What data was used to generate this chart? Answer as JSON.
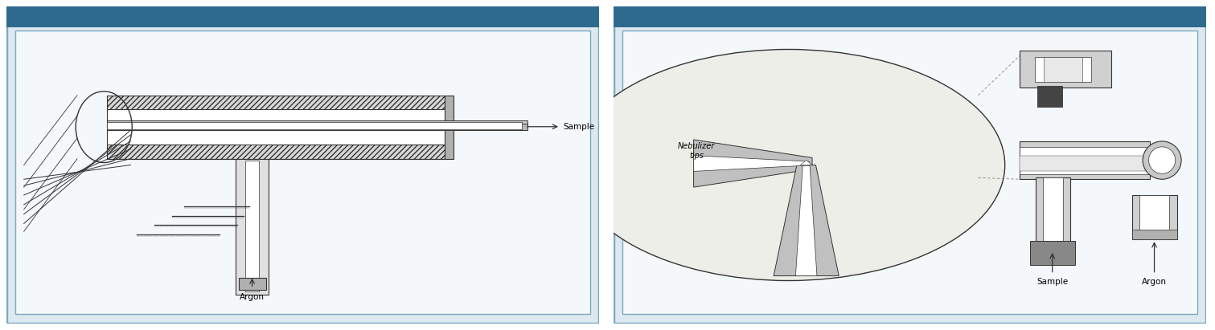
{
  "fig_width": 15.11,
  "fig_height": 4.11,
  "dpi": 100,
  "bg_color": "#ffffff",
  "panel_bg": "#dde8f0",
  "header_color": "#2e6a8e",
  "border_color": "#7aaabb",
  "inner_bg": "#f5f8fa",
  "label_sample1": "Sample",
  "label_argon1": "Argon",
  "label_sample2": "Sample",
  "label_argon2": "Argon",
  "label_nebulizer_tips": "Nebulizer\ntips",
  "line_color": "#333333",
  "hatch_fc": "#d8d8d8",
  "tube_fc": "#e0e0e0",
  "white": "#ffffff",
  "dark_gray": "#555555",
  "mid_gray": "#aaaaaa"
}
